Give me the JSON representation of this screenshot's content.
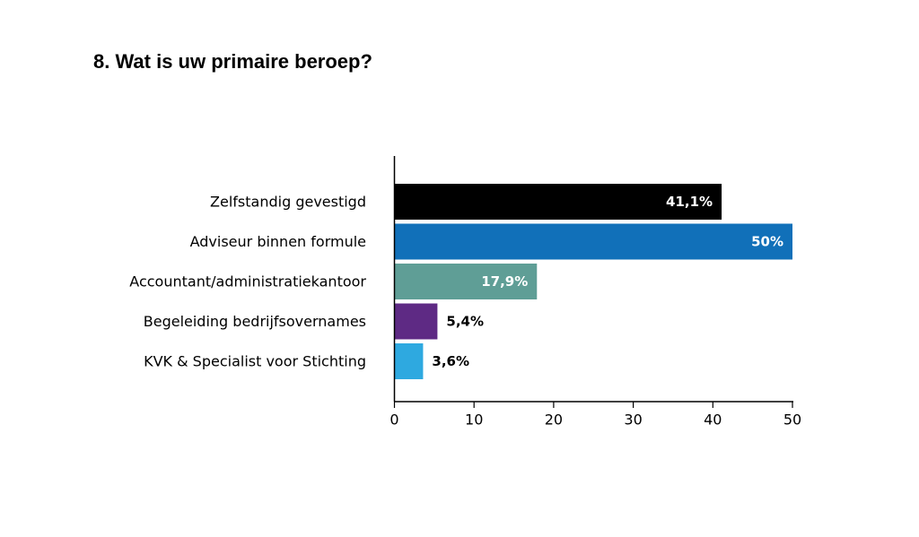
{
  "page": {
    "title": "8. Wat is uw primaire beroep?"
  },
  "chart_data": {
    "type": "bar",
    "orientation": "horizontal",
    "title": "8. Wat is uw primaire beroep?",
    "xlabel": "",
    "ylabel": "",
    "xlim": [
      0,
      50
    ],
    "xticks": [
      0,
      10,
      20,
      30,
      40,
      50
    ],
    "grid": false,
    "legend": "none",
    "categories": [
      "Zelfstandig gevestigd",
      "Adviseur binnen formule",
      "Accountant/administratiekantoor",
      "Begeleiding bedrijfsovernames",
      "KVK & Specialist voor Stichting"
    ],
    "values": [
      41.1,
      50,
      17.9,
      5.4,
      3.6
    ],
    "data_labels": [
      "41,1%",
      "50%",
      "17,9%",
      "5,4%",
      "3,6%"
    ],
    "colors": [
      "#000000",
      "#1170b9",
      "#5f9e96",
      "#5e2a84",
      "#2ea9e0"
    ]
  }
}
